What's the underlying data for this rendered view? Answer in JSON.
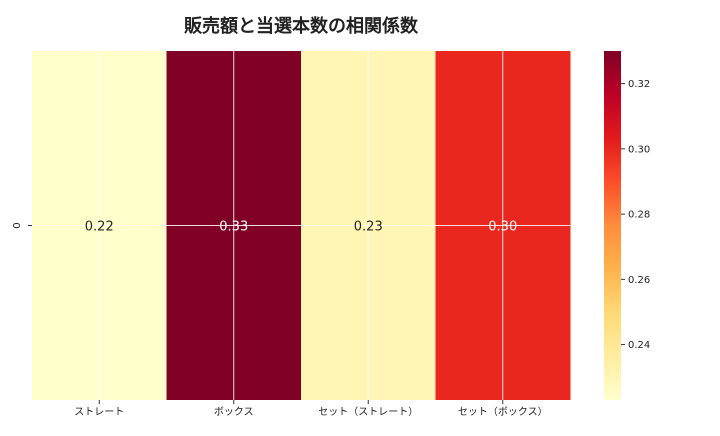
{
  "chart_data": {
    "type": "heatmap",
    "title": "販売額と当選本数の相関係数",
    "xlabel": "",
    "ylabel": "",
    "row_labels": [
      "0"
    ],
    "categories": [
      "ストレート",
      "ボックス",
      "セット（ストレート）",
      "セット（ボックス）"
    ],
    "values": [
      [
        0.22,
        0.33,
        0.23,
        0.3
      ]
    ],
    "value_labels": [
      "0.22",
      "0.33",
      "0.23",
      "0.30"
    ],
    "colorbar": {
      "range": [
        0.223,
        0.33
      ],
      "ticks": [
        0.24,
        0.26,
        0.28,
        0.3,
        0.32
      ],
      "tick_labels": [
        "0.24",
        "0.26",
        "0.28",
        "0.30",
        "0.32"
      ],
      "colormap": "YlOrRd",
      "colors": [
        "#ffffcc",
        "#ffeda0",
        "#fed976",
        "#feb24c",
        "#fd8d3c",
        "#fc4e2a",
        "#e31a1c",
        "#bd0026",
        "#800026"
      ]
    },
    "grid": true
  }
}
